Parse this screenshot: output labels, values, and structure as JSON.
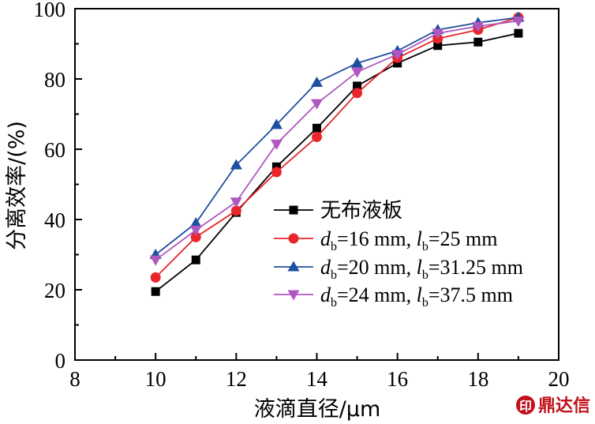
{
  "chart_data": {
    "type": "line",
    "xlabel": "液滴直径/μm",
    "ylabel": "分离效率/(%)",
    "xlim": [
      8,
      20
    ],
    "ylim": [
      0,
      100
    ],
    "xticks": [
      "8",
      "10",
      "12",
      "14",
      "16",
      "18",
      "20"
    ],
    "yticks": [
      "0",
      "20",
      "40",
      "60",
      "80",
      "100"
    ],
    "x": [
      10,
      11,
      12,
      13,
      14,
      15,
      16,
      17,
      18,
      19
    ],
    "series": [
      {
        "name": "无布液板",
        "color": "#000000",
        "marker": "square",
        "values": [
          19.5,
          28.5,
          42,
          55,
          66,
          78,
          84.5,
          89.5,
          90.5,
          93
        ]
      },
      {
        "name": "db=16 mm, lb=25 mm",
        "label_parts": {
          "d": "d",
          "sub1": "b",
          "mid": "=16 mm, ",
          "l": "l",
          "sub2": "b",
          "tail": "=25 mm"
        },
        "color": "#e8262b",
        "marker": "circle",
        "values": [
          23.5,
          35,
          42.5,
          53.5,
          63.5,
          76,
          86,
          91.5,
          94,
          97.5
        ]
      },
      {
        "name": "db=20 mm, lb=31.25 mm",
        "label_parts": {
          "d": "d",
          "sub1": "b",
          "mid": "=20 mm, ",
          "l": "l",
          "sub2": "b",
          "tail": "=31.25 mm"
        },
        "color": "#1e4fa0",
        "marker": "triangle-up",
        "values": [
          30,
          39,
          55.5,
          67,
          79,
          84.5,
          88,
          94,
          96,
          97.5
        ]
      },
      {
        "name": "db=24 mm, lb=37.5 mm",
        "label_parts": {
          "d": "d",
          "sub1": "b",
          "mid": "=24 mm, ",
          "l": "l",
          "sub2": "b",
          "tail": "=37.5 mm"
        },
        "color": "#b057c0",
        "marker": "triangle-down",
        "values": [
          28.5,
          37,
          45,
          61.5,
          73,
          82,
          87,
          93,
          95,
          96.5
        ]
      }
    ],
    "legend_position": "lower-right",
    "grid": false
  },
  "watermark": {
    "text": "鼎达信"
  }
}
